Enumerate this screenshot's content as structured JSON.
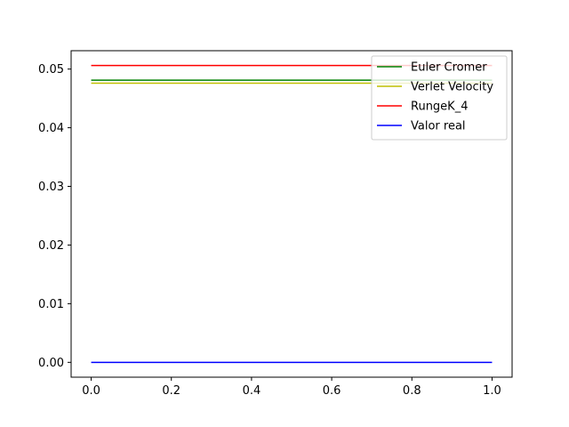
{
  "chart_data": {
    "type": "line",
    "title": "",
    "xlabel": "",
    "ylabel": "",
    "xlim": [
      -0.05,
      1.05
    ],
    "ylim": [
      -0.00253,
      0.05313
    ],
    "grid": false,
    "legend_position": "top-right",
    "x_ticks": [
      0.0,
      0.2,
      0.4,
      0.6,
      0.8,
      1.0
    ],
    "x_tick_labels": [
      "0.0",
      "0.2",
      "0.4",
      "0.6",
      "0.8",
      "1.0"
    ],
    "y_ticks": [
      0.0,
      0.01,
      0.02,
      0.03,
      0.04,
      0.05
    ],
    "y_tick_labels": [
      "0.00",
      "0.01",
      "0.02",
      "0.03",
      "0.04",
      "0.05"
    ],
    "x": [
      0.0,
      1.0
    ],
    "series": [
      {
        "name": "Euler Cromer",
        "color": "#008000",
        "values": [
          0.0481,
          0.0481
        ]
      },
      {
        "name": "Verlet Velocity",
        "color": "#bfbf00",
        "values": [
          0.0476,
          0.0476
        ]
      },
      {
        "name": "RungeK_4",
        "color": "#ff0000",
        "values": [
          0.0506,
          0.0506
        ]
      },
      {
        "name": "Valor real",
        "color": "#0000ff",
        "values": [
          0.0,
          0.0
        ]
      }
    ]
  }
}
